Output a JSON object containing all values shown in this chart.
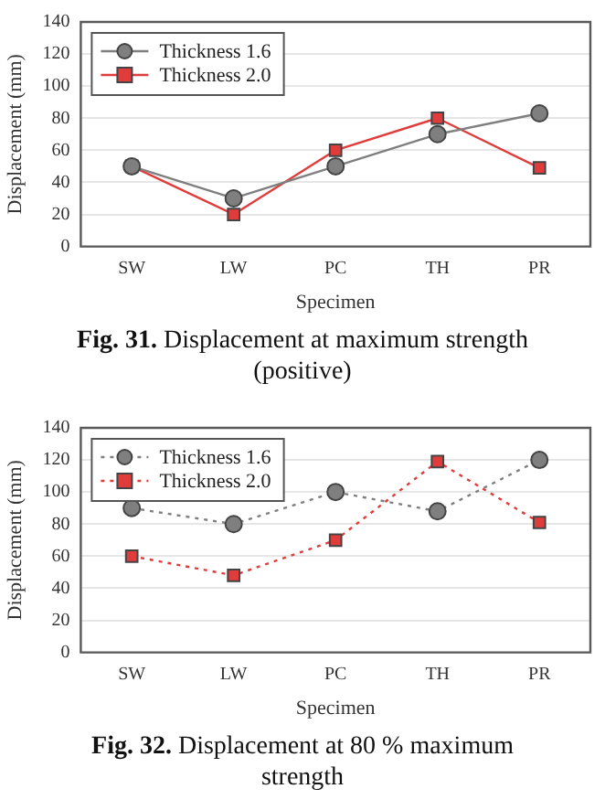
{
  "chart_data": [
    {
      "type": "line",
      "categories": [
        "SW",
        "LW",
        "PC",
        "TH",
        "PR"
      ],
      "xlabel": "Specimen",
      "ylabel": "Displacement (mm)",
      "ylim": [
        0,
        140
      ],
      "yticks": [
        0,
        20,
        40,
        60,
        80,
        100,
        120,
        140
      ],
      "grid": "y",
      "legend": "top left",
      "line_style": "solid",
      "annotations": [
        "Fig. 31.",
        "Displacement at maximum strength (positive)"
      ],
      "series": [
        {
          "name": "Thickness 1.6",
          "color": "#7f7f7f",
          "marker": "circle",
          "values": [
            50,
            30,
            50,
            70,
            83
          ]
        },
        {
          "name": "Thickness 2.0",
          "color": "#e03c3c",
          "marker": "square",
          "values": [
            50,
            20,
            60,
            80,
            49
          ]
        }
      ]
    },
    {
      "type": "line",
      "categories": [
        "SW",
        "LW",
        "PC",
        "TH",
        "PR"
      ],
      "xlabel": "Specimen",
      "ylabel": "Displacement (mm)",
      "ylim": [
        0,
        140
      ],
      "yticks": [
        0,
        20,
        40,
        60,
        80,
        100,
        120,
        140
      ],
      "grid": "y",
      "legend": "top left",
      "line_style": "dotted",
      "annotations": [
        "Fig. 32.",
        "Displacement at 80 % maximum strength"
      ],
      "series": [
        {
          "name": "Thickness 1.6",
          "color": "#7f7f7f",
          "marker": "circle",
          "values": [
            90,
            80,
            100,
            88,
            120
          ]
        },
        {
          "name": "Thickness 2.0",
          "color": "#e03c3c",
          "marker": "square",
          "values": [
            60,
            48,
            70,
            119,
            81
          ]
        }
      ]
    }
  ]
}
